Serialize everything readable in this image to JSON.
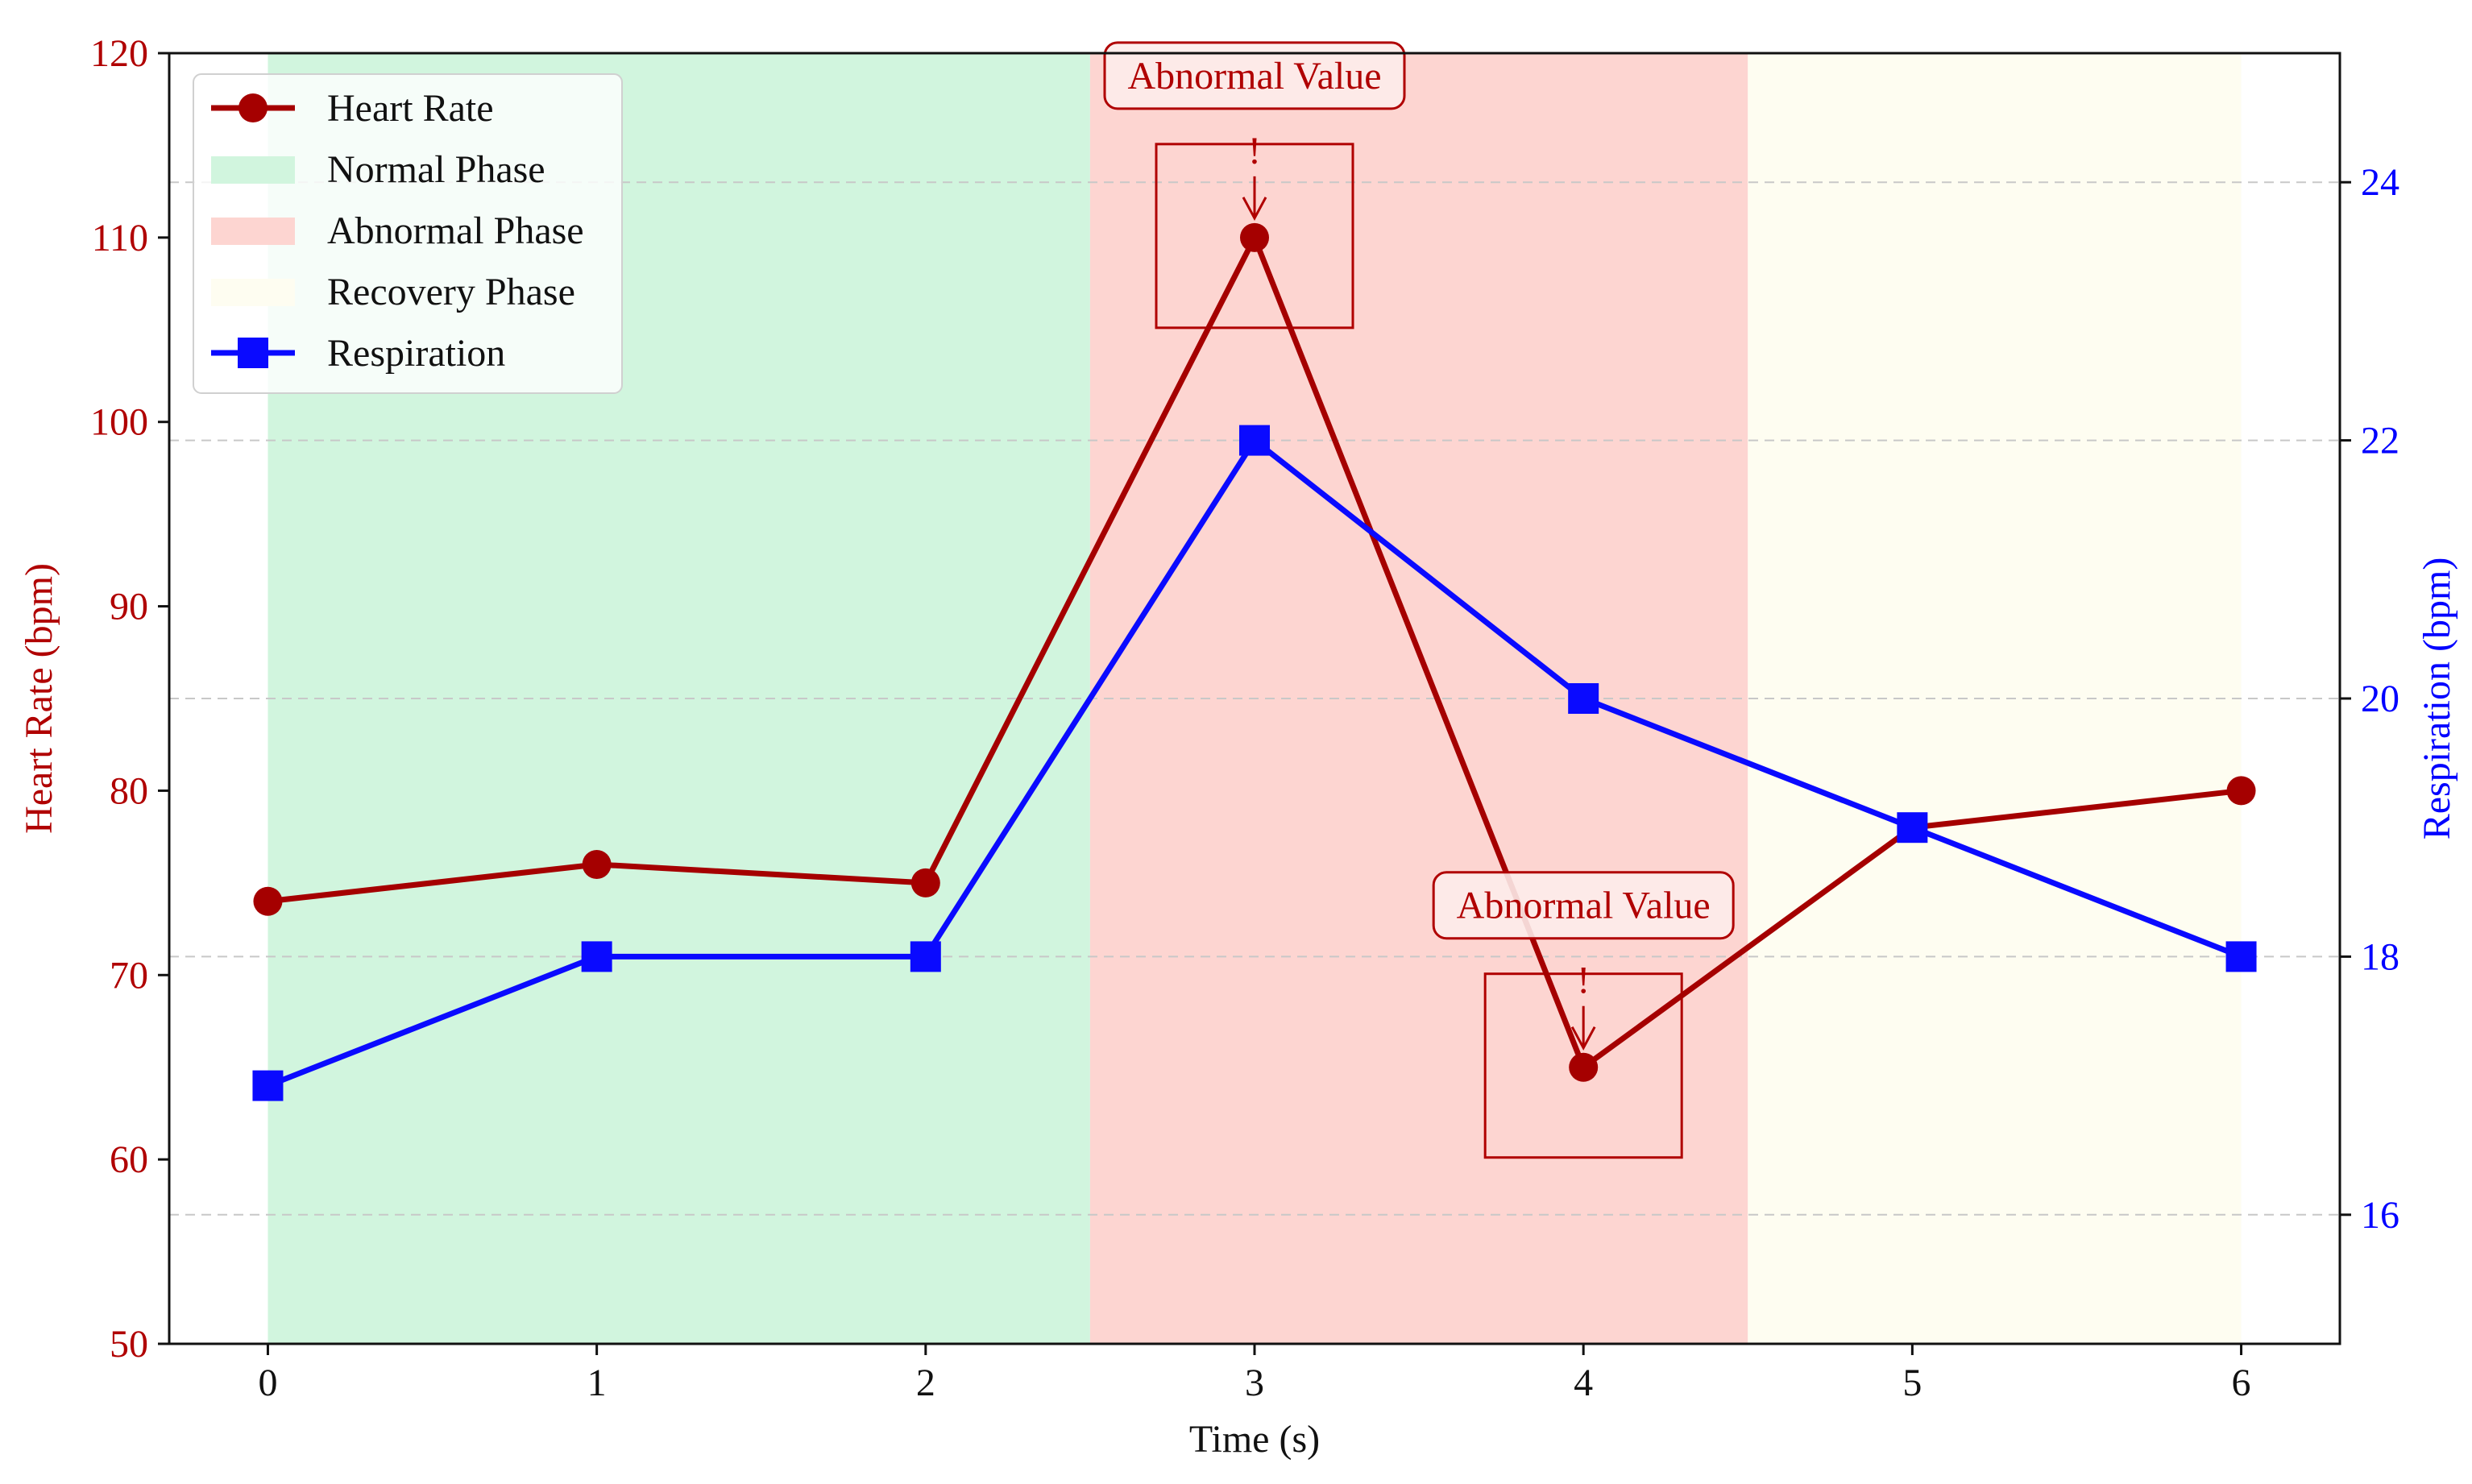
{
  "chart_data": {
    "type": "line",
    "xlabel": "Time (s)",
    "ylabel_left": "Heart Rate (bpm)",
    "ylabel_right": "Respiration (bpm)",
    "x_ticks": [
      "0",
      "1",
      "2",
      "3",
      "4",
      "5",
      "6"
    ],
    "y_left_ticks": [
      "50",
      "60",
      "70",
      "80",
      "90",
      "100",
      "110",
      "120"
    ],
    "y_right_ticks": [
      "16",
      "18",
      "20",
      "22",
      "24"
    ],
    "x": [
      0,
      1,
      2,
      3,
      4,
      5,
      6
    ],
    "xlim": [
      -0.3,
      6.3
    ],
    "ylim_left": [
      50,
      120
    ],
    "ylim_right": [
      15,
      25
    ],
    "grid": "horizontal dashed (right axis)",
    "legend_placement": "top-left",
    "series": [
      {
        "name": "Heart Rate",
        "axis": "left",
        "values": [
          74,
          76,
          75,
          110,
          65,
          78,
          80
        ],
        "color": "#a50000",
        "marker": "circle"
      },
      {
        "name": "Respiration",
        "axis": "right",
        "values": [
          17,
          18,
          18,
          22,
          20,
          19,
          18
        ],
        "color": "#0a0aff",
        "marker": "square"
      }
    ],
    "phases": [
      {
        "name": "Normal Phase",
        "start": 0,
        "end": 2.5,
        "color": "#d1f5de"
      },
      {
        "name": "Abnormal Phase",
        "start": 2.5,
        "end": 4.5,
        "color": "#fdd5d1"
      },
      {
        "name": "Recovery Phase",
        "start": 4.5,
        "end": 6,
        "color": "#fefdf1"
      }
    ],
    "annotations": [
      {
        "text": "Abnormal Value",
        "marker": "!",
        "x": 3,
        "y": 110
      },
      {
        "text": "Abnormal Value",
        "marker": "!",
        "x": 4,
        "y": 65
      }
    ],
    "colors": {
      "left_axis": "#b00000",
      "right_axis": "#0000ff",
      "annotation": "#b00000"
    }
  }
}
